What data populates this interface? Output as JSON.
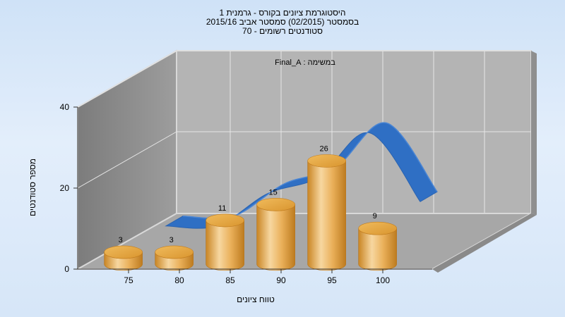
{
  "chart_data": {
    "type": "bar",
    "title_lines": [
      "היסטוגרמת ציונים בקורס - גרמנית 1",
      "בסמסטר  (02/2015)  סמסטר אביב 2015/16",
      "סטודנטים רשומים - 70"
    ],
    "annotation": "במשימה : Final_A",
    "xlabel": "טווח ציונים",
    "ylabel": "מספר סטודנטים",
    "categories": [
      "75",
      "80",
      "85",
      "90",
      "95",
      "100"
    ],
    "ylim": [
      0,
      40
    ],
    "yticks": [
      "0",
      "20",
      "40"
    ],
    "grid": true,
    "series": [
      {
        "type": "bar",
        "values": [
          3,
          3,
          11,
          15,
          26,
          9
        ]
      },
      {
        "type": "area-curve",
        "values": [
          3,
          3,
          11,
          15,
          26,
          9
        ]
      }
    ],
    "colors": {
      "bar": "#e8a53d",
      "bar_light": "#f6d49a",
      "bar_dark": "#c07a1c",
      "curve": "#2f6fc4",
      "back_wall": "#b6b6b6",
      "side_wall": "#8c8c8c",
      "floor": "#a9a9a9",
      "grid": "#e8e8e8"
    }
  }
}
